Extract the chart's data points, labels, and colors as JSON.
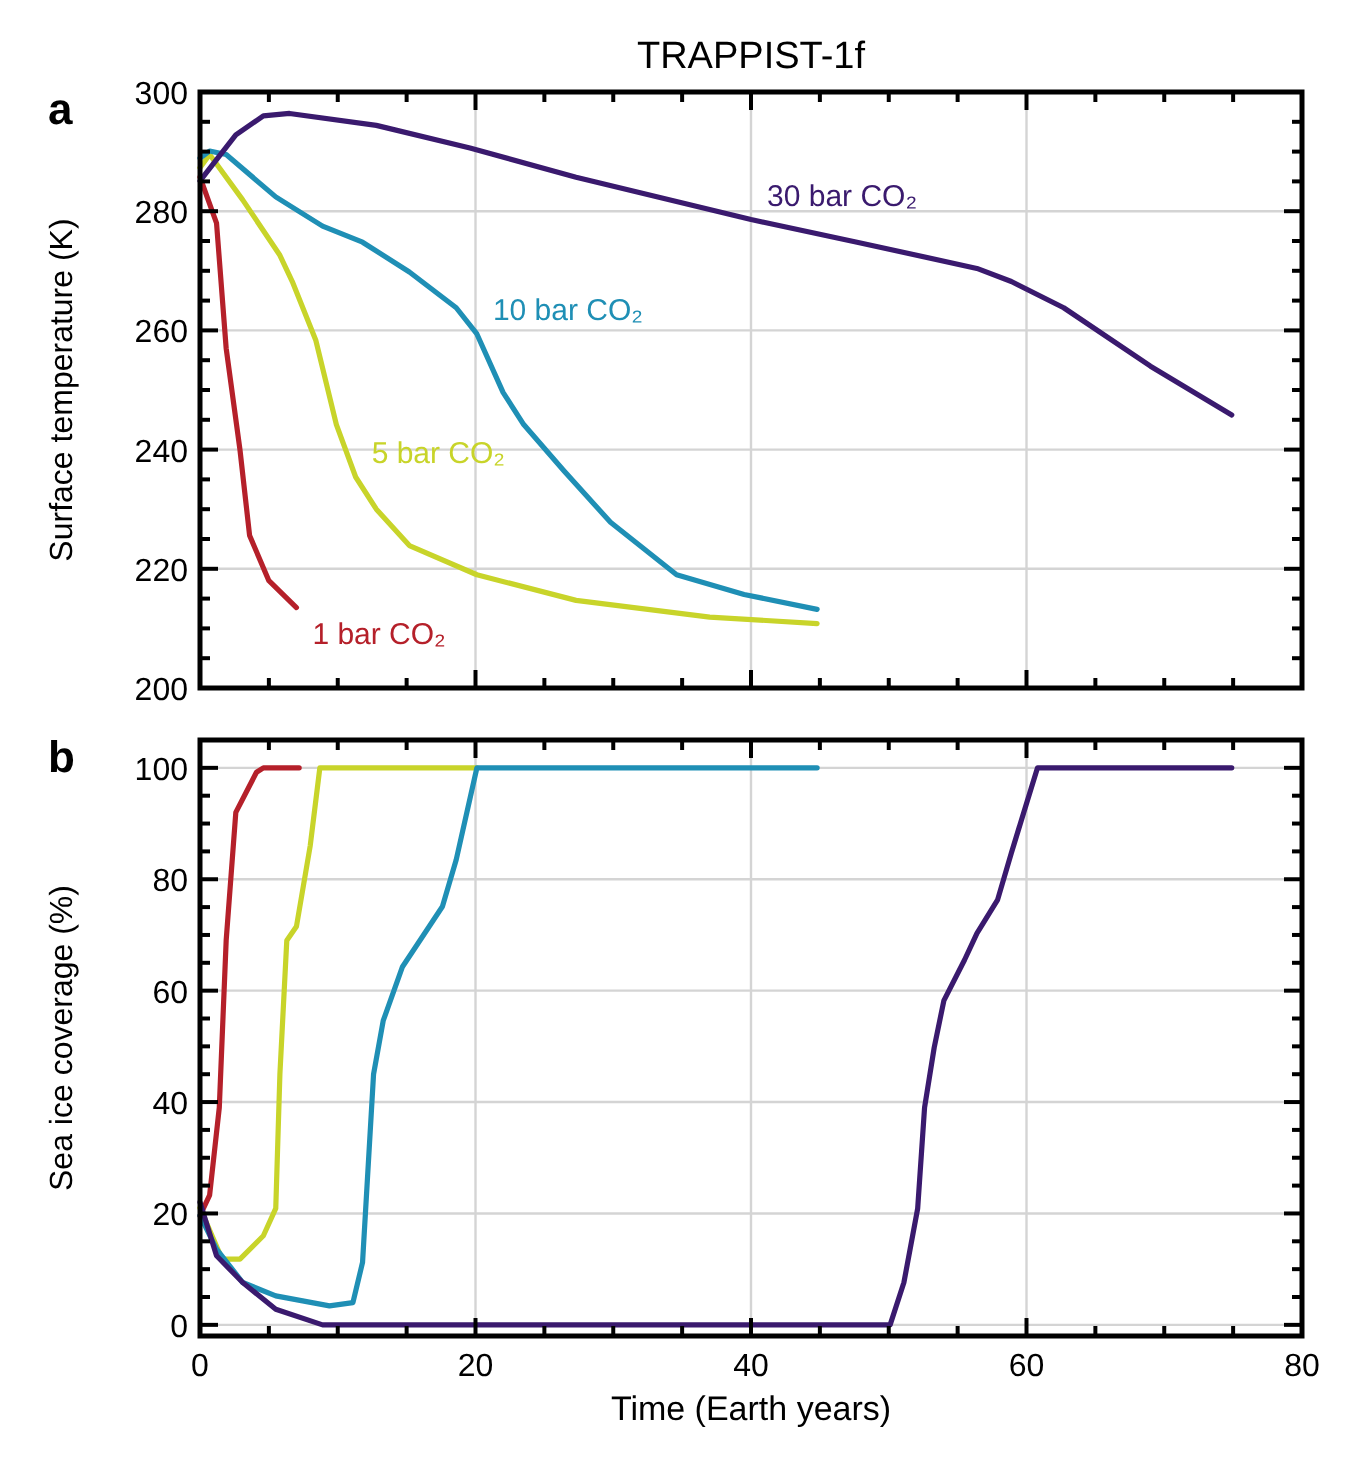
{
  "chart_data": [
    {
      "type": "line",
      "title": "TRAPPIST-1f",
      "ylabel": "Surface temperature (K)",
      "annotations": [
        "a"
      ],
      "grid": true,
      "tick_labels": "y",
      "xlim": [
        0,
        80
      ],
      "ylim": [
        200,
        300
      ],
      "xticks": [
        0,
        {
          "value": 5,
          "label": null
        },
        {
          "value": 10,
          "label": null
        },
        {
          "value": 15,
          "label": null
        },
        20,
        {
          "value": 25,
          "label": null
        },
        {
          "value": 30,
          "label": null
        },
        {
          "value": 35,
          "label": null
        },
        40,
        {
          "value": 45,
          "label": null
        },
        {
          "value": 50,
          "label": null
        },
        {
          "value": 55,
          "label": null
        },
        60,
        {
          "value": 65,
          "label": null
        },
        {
          "value": 70,
          "label": null
        },
        {
          "value": 75,
          "label": null
        },
        80
      ],
      "yticks": [
        200,
        {
          "value": 205,
          "label": null
        },
        {
          "value": 210,
          "label": null
        },
        {
          "value": 215,
          "label": null
        },
        220,
        {
          "value": 225,
          "label": null
        },
        {
          "value": 230,
          "label": null
        },
        {
          "value": 235,
          "label": null
        },
        240,
        {
          "value": 245,
          "label": null
        },
        {
          "value": 250,
          "label": null
        },
        {
          "value": 255,
          "label": null
        },
        260,
        {
          "value": 265,
          "label": null
        },
        {
          "value": 270,
          "label": null
        },
        {
          "value": 275,
          "label": null
        },
        280,
        {
          "value": 285,
          "label": null
        },
        {
          "value": 290,
          "label": null
        },
        {
          "value": 295,
          "label": null
        },
        300
      ],
      "series": [
        {
          "name": "1 bar CO₂",
          "color": "#b5202a",
          "x": [
            0,
            1.2,
            1.9,
            2.9,
            3.6,
            5.0,
            7.0
          ],
          "values": [
            285.7,
            278,
            257,
            240,
            225.6,
            218,
            213.5
          ]
        },
        {
          "name": "5 bar CO₂",
          "color": "#c8d42a",
          "x": [
            0,
            0.7,
            3.1,
            5.8,
            6.7,
            8.4,
            9.9,
            11.3,
            12.8,
            15.2,
            20.1,
            27.3,
            37,
            44.8
          ],
          "values": [
            287.3,
            289.5,
            281.9,
            272.6,
            268.2,
            258.4,
            244.2,
            235.4,
            230,
            223.9,
            219,
            214.7,
            211.9,
            210.8
          ]
        },
        {
          "name": "10 bar CO₂",
          "color": "#1f8fb5",
          "x": [
            0,
            0.7,
            1.9,
            5.5,
            8.9,
            11.8,
            15.2,
            18.6,
            20.1,
            22,
            23.5,
            26.4,
            29.8,
            34.6,
            39.5,
            44.8
          ],
          "values": [
            288.9,
            290.1,
            289.5,
            282.4,
            277.5,
            274.8,
            269.8,
            263.8,
            259.4,
            249.6,
            244.2,
            236.5,
            227.8,
            219,
            215.7,
            213.2
          ]
        },
        {
          "name": "30 bar CO₂",
          "color": "#3a1a6e",
          "x": [
            0,
            2.6,
            4.6,
            6.5,
            12.8,
            19.6,
            27.3,
            40,
            47.7,
            56.4,
            58.9,
            62.7,
            69,
            74.9
          ],
          "values": [
            285.1,
            292.8,
            296,
            296.4,
            294.4,
            290.6,
            285.7,
            278.6,
            274.8,
            270.4,
            268.2,
            263.8,
            254,
            245.8
          ]
        }
      ]
    },
    {
      "type": "line",
      "xlabel": "Time (Earth years)",
      "ylabel": "Sea ice coverage (%)",
      "annotations": [
        "b"
      ],
      "grid": true,
      "xlim": [
        0,
        80
      ],
      "ylim": [
        -2,
        105
      ],
      "xticks": [
        0,
        {
          "value": 5,
          "label": null
        },
        {
          "value": 10,
          "label": null
        },
        {
          "value": 15,
          "label": null
        },
        20,
        {
          "value": 25,
          "label": null
        },
        {
          "value": 30,
          "label": null
        },
        {
          "value": 35,
          "label": null
        },
        40,
        {
          "value": 45,
          "label": null
        },
        {
          "value": 50,
          "label": null
        },
        {
          "value": 55,
          "label": null
        },
        60,
        {
          "value": 65,
          "label": null
        },
        {
          "value": 70,
          "label": null
        },
        {
          "value": 75,
          "label": null
        },
        80
      ],
      "yticks": [
        0,
        {
          "value": 5,
          "label": null
        },
        {
          "value": 10,
          "label": null
        },
        {
          "value": 15,
          "label": null
        },
        20,
        {
          "value": 25,
          "label": null
        },
        {
          "value": 30,
          "label": null
        },
        {
          "value": 35,
          "label": null
        },
        40,
        {
          "value": 45,
          "label": null
        },
        {
          "value": 50,
          "label": null
        },
        {
          "value": 55,
          "label": null
        },
        60,
        {
          "value": 65,
          "label": null
        },
        {
          "value": 70,
          "label": null
        },
        {
          "value": 75,
          "label": null
        },
        80,
        {
          "value": 85,
          "label": null
        },
        {
          "value": 90,
          "label": null
        },
        {
          "value": 95,
          "label": null
        },
        100
      ],
      "series": [
        {
          "color": "#b5202a",
          "x": [
            0,
            0.7,
            1.4,
            1.9,
            2.6,
            4.1,
            4.6,
            7.2
          ],
          "values": [
            19.6,
            23.3,
            39,
            69,
            92,
            99.2,
            100,
            100
          ]
        },
        {
          "color": "#c8d42a",
          "x": [
            0,
            1.6,
            2.9,
            4.6,
            5.5,
            5.8,
            6.3,
            7,
            8,
            8.7,
            20.1
          ],
          "values": [
            21,
            11.8,
            11.8,
            16,
            20.9,
            45,
            69,
            71.5,
            86,
            100,
            100
          ]
        },
        {
          "color": "#1f8fb5",
          "x": [
            0,
            1.2,
            3.1,
            5.5,
            9.4,
            11.1,
            11.8,
            12.6,
            13.3,
            14.7,
            17.6,
            18.6,
            20.1,
            44.8
          ],
          "values": [
            19.6,
            13.6,
            7.6,
            5.2,
            3.4,
            4,
            11.2,
            45,
            54.6,
            64.3,
            75.1,
            83.5,
            100,
            100
          ]
        },
        {
          "color": "#3a1a6e",
          "x": [
            0,
            1.2,
            3.1,
            5.5,
            8.9,
            50.1,
            51.1,
            52.1,
            52.6,
            53.3,
            54,
            55.5,
            56.4,
            57.9,
            58.9,
            59.8,
            60.8,
            74.9
          ],
          "values": [
            22,
            12.4,
            7.6,
            2.8,
            0,
            0,
            7.6,
            20.9,
            39,
            49.8,
            58.2,
            65.5,
            70.3,
            76.3,
            84.7,
            92,
            100,
            100
          ]
        }
      ]
    }
  ]
}
